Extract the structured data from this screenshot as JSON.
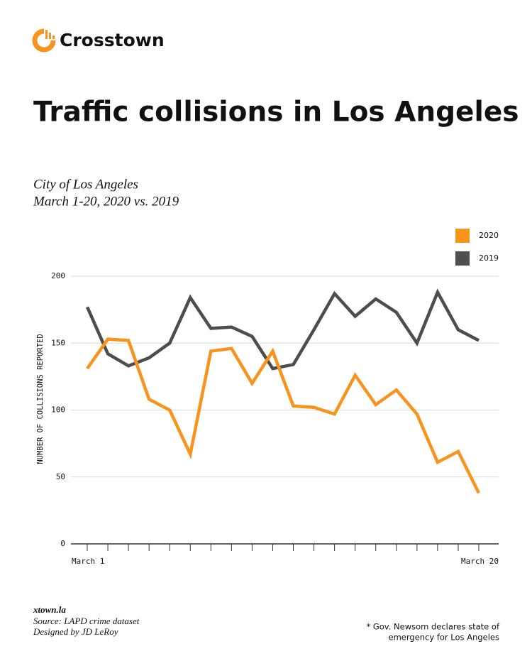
{
  "header": {
    "brand": "Crosstown"
  },
  "chart_data": {
    "type": "line",
    "title": "Traffic collisions in Los Angeles",
    "subtitle": [
      "City of Los Angeles",
      "March 1-20, 2020 vs. 2019"
    ],
    "y_label": "NUMBER OF COLLISIONS REPORTED",
    "categories": [
      "March 1",
      null,
      null,
      null,
      null,
      null,
      null,
      null,
      null,
      null,
      null,
      null,
      null,
      null,
      null,
      null,
      null,
      null,
      null,
      "March 20"
    ],
    "series": [
      {
        "name": "2020",
        "color": "#f7941d",
        "values": [
          131,
          153,
          152,
          108,
          100,
          67,
          144,
          146,
          120,
          144,
          103,
          102,
          97,
          126,
          104,
          115,
          97,
          61,
          69,
          38
        ]
      },
      {
        "name": "2019",
        "color": "#4d4d4d",
        "values": [
          177,
          142,
          133,
          139,
          150,
          184,
          161,
          162,
          155,
          131,
          134,
          160,
          187,
          170,
          183,
          173,
          150,
          188,
          160,
          152
        ]
      }
    ],
    "ylim": [
      0,
      200
    ],
    "yticks": [
      0,
      50,
      100,
      150,
      200
    ],
    "grid": true,
    "legend": "upper right"
  },
  "footer": {
    "site": "xtown.la",
    "source": "Source: LAPD crime dataset",
    "designer": "Designed by JD LeRoy",
    "note": [
      "* Gov. Newsom  declares state of",
      "emergency for Los Angeles"
    ]
  }
}
